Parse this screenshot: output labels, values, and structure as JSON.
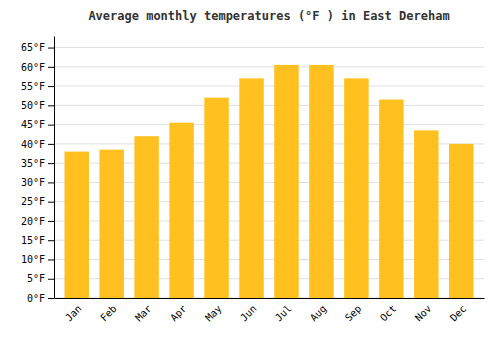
{
  "chart_data": {
    "type": "bar",
    "title": "Average monthly temperatures (°F ) in East Dereham",
    "categories": [
      "Jan",
      "Feb",
      "Mar",
      "Apr",
      "May",
      "Jun",
      "Jul",
      "Aug",
      "Sep",
      "Oct",
      "Nov",
      "Dec"
    ],
    "values": [
      38,
      38.5,
      42,
      45.5,
      52,
      57,
      60.5,
      60.5,
      57,
      51.5,
      43.5,
      40
    ],
    "color": "#FFC020",
    "ylim": [
      0,
      68
    ],
    "yticks": [
      {
        "value": 0,
        "label": "0°F"
      },
      {
        "value": 5,
        "label": "5°F"
      },
      {
        "value": 10,
        "label": "10°F"
      },
      {
        "value": 15,
        "label": "15°F"
      },
      {
        "value": 20,
        "label": "20°F"
      },
      {
        "value": 25,
        "label": "25°F"
      },
      {
        "value": 30,
        "label": "30°F"
      },
      {
        "value": 35,
        "label": "35°F"
      },
      {
        "value": 40,
        "label": "40°F"
      },
      {
        "value": 45,
        "label": "45°F"
      },
      {
        "value": 50,
        "label": "50°F"
      },
      {
        "value": 55,
        "label": "55°F"
      },
      {
        "value": 60,
        "label": "60°F"
      },
      {
        "value": 65,
        "label": "65°F"
      }
    ],
    "grid": true
  }
}
